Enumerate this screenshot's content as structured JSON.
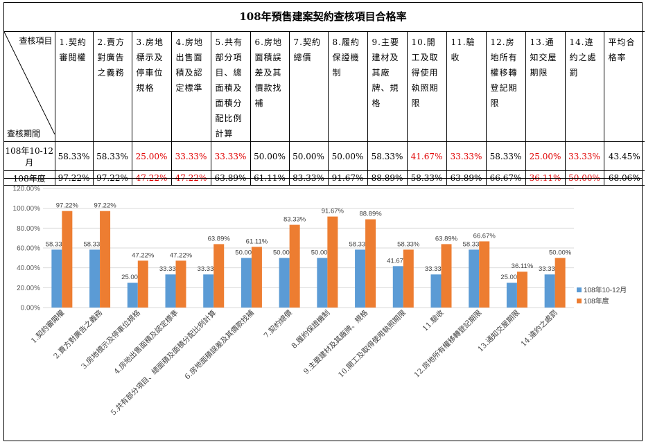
{
  "title": "108年預售建案契約查核項目合格率",
  "table": {
    "corner_top": "查核項目",
    "corner_bottom": "查核期間",
    "headers": [
      "1.契約審閱權",
      "2.賣方對廣告之義務",
      "3.房地標示及停車位規格",
      "4.房地出售面積及認定標準",
      "5.共有部分項目、總面積及面積分配比例計算",
      "6.房地面積誤差及其價款找補",
      "7.契約總價",
      "8.履約保證機制",
      "9.主要建材及其廠牌、規格",
      "10.開工及取得使用執照期限",
      "11.驗收",
      "12.房地所有權移轉登記期限",
      "13.通知交屋期限",
      "14.違約之處罰",
      "平均合格率"
    ],
    "rows": [
      {
        "label": "108年10-12月",
        "values": [
          "58.33%",
          "58.33%",
          "25.00%",
          "33.33%",
          "33.33%",
          "50.00%",
          "50.00%",
          "50.00%",
          "58.33%",
          "41.67%",
          "33.33%",
          "58.33%",
          "25.00%",
          "33.33%",
          "43.45%"
        ],
        "red": [
          false,
          false,
          true,
          true,
          true,
          false,
          false,
          false,
          false,
          true,
          true,
          false,
          true,
          true,
          false
        ]
      },
      {
        "label": "108年度",
        "values": [
          "97.22%",
          "97.22%",
          "47.22%",
          "47.22%",
          "63.89%",
          "61.11%",
          "83.33%",
          "91.67%",
          "88.89%",
          "58.33%",
          "63.89%",
          "66.67%",
          "36.11%",
          "50.00%",
          "68.06%"
        ],
        "red": [
          false,
          false,
          true,
          true,
          false,
          false,
          false,
          false,
          false,
          false,
          false,
          false,
          true,
          true,
          false
        ]
      }
    ]
  },
  "chart_data": {
    "type": "bar",
    "categories": [
      "1.契約審閱權",
      "2.賣方對廣告之義務",
      "3.房地標示及停車位規格",
      "4.房地出售面積及認定標準",
      "5.共有部分項目、總面積及面積分配比例計算",
      "6.房地面積誤差及其價款找補",
      "7.契約總價",
      "8.履約保證機制",
      "9.主要建材及其廠牌、規格",
      "10.開工及取得使用執照期限",
      "11.驗收",
      "12.房地所有權移轉登記期限",
      "13.通知交屋期限",
      "14.違約之處罰"
    ],
    "series": [
      {
        "name": "108年10-12月",
        "color": "#5b9bd5",
        "values": [
          58.33,
          58.33,
          25.0,
          33.33,
          33.33,
          50.0,
          50.0,
          50.0,
          58.33,
          41.67,
          33.33,
          58.33,
          25.0,
          33.33
        ]
      },
      {
        "name": "108年度",
        "color": "#ed7d31",
        "values": [
          97.22,
          97.22,
          47.22,
          47.22,
          63.89,
          61.11,
          83.33,
          91.67,
          88.89,
          58.33,
          63.89,
          66.67,
          36.11,
          50.0
        ]
      }
    ],
    "ylim": [
      0,
      120
    ],
    "yticks": [
      "0.00%",
      "20.00%",
      "40.00%",
      "60.00%",
      "80.00%",
      "100.00%",
      "120.00%"
    ],
    "grid": true,
    "legend": "right"
  }
}
